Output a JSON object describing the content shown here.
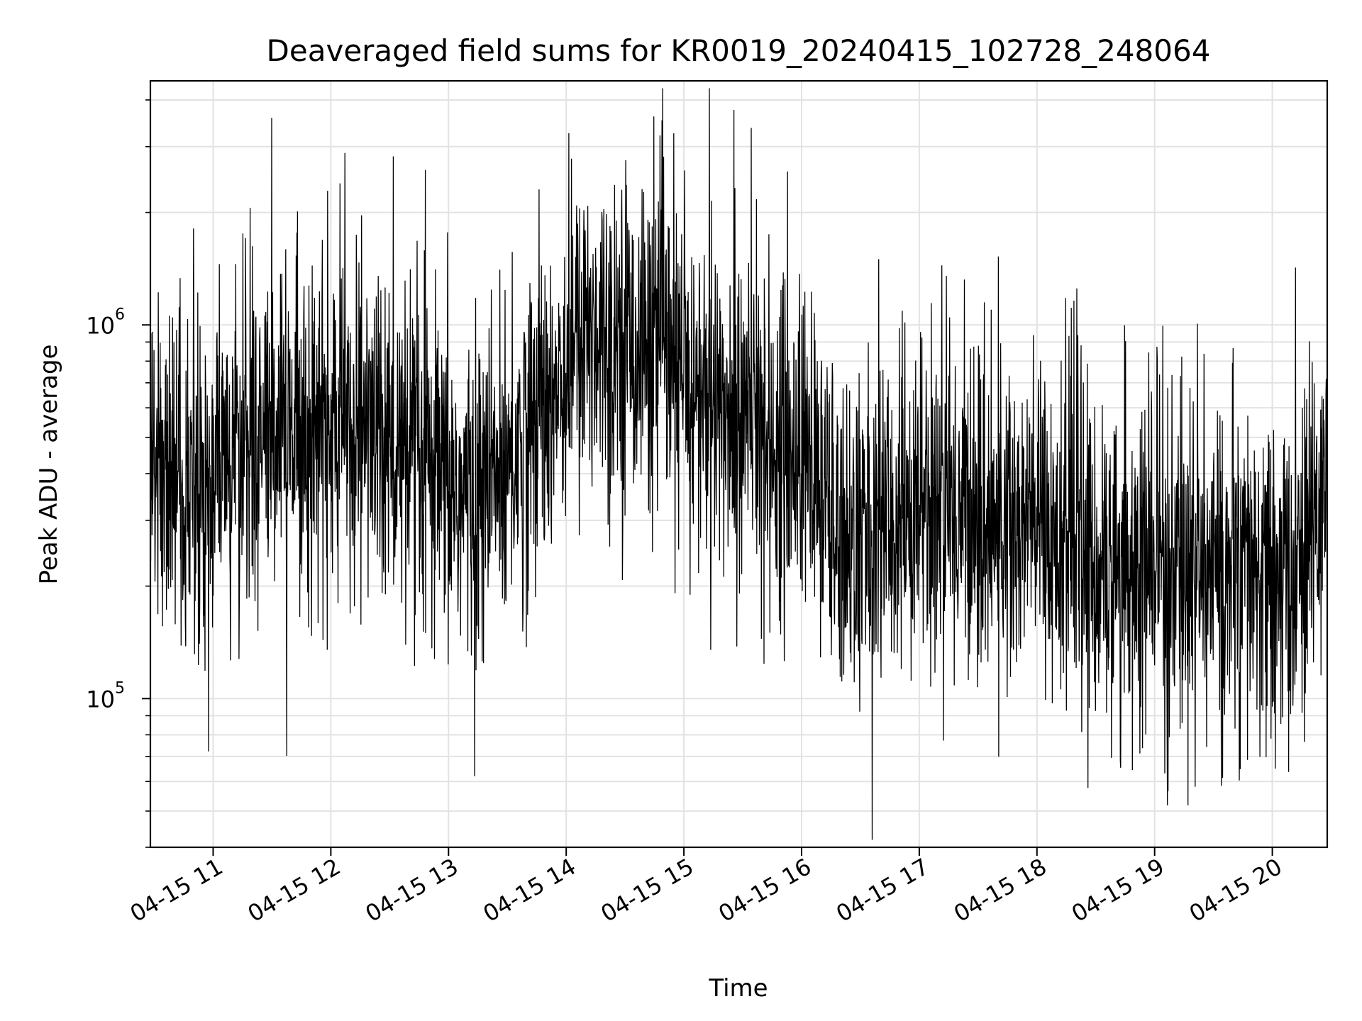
{
  "chart_data": {
    "type": "line",
    "title": "Deaveraged field sums for KR0019_20240415_102728_248064",
    "xlabel": "Time",
    "ylabel": "Peak ADU - average",
    "yscale": "log",
    "grid": true,
    "x_range": [
      "04-15 10:28",
      "04-15 20:28"
    ],
    "ylim": [
      40000,
      4500000
    ],
    "xtick_labels": [
      "04-15 11",
      "04-15 12",
      "04-15 13",
      "04-15 14",
      "04-15 15",
      "04-15 16",
      "04-15 17",
      "04-15 18",
      "04-15 19",
      "04-15 20"
    ],
    "ytick_labels": [
      {
        "base": "10",
        "exp": "5",
        "value": 100000
      },
      {
        "base": "10",
        "exp": "6",
        "value": 1000000
      }
    ],
    "series": [
      {
        "color": "#000000",
        "x": [
          "04-15 10:28",
          "04-15 10:45",
          "04-15 11:00",
          "04-15 11:15",
          "04-15 11:30",
          "04-15 11:45",
          "04-15 12:00",
          "04-15 12:15",
          "04-15 12:30",
          "04-15 12:45",
          "04-15 13:00",
          "04-15 13:15",
          "04-15 13:30",
          "04-15 13:45",
          "04-15 14:00",
          "04-15 14:15",
          "04-15 14:30",
          "04-15 14:45",
          "04-15 15:00",
          "04-15 15:15",
          "04-15 15:30",
          "04-15 15:45",
          "04-15 16:00",
          "04-15 16:15",
          "04-15 16:30",
          "04-15 16:45",
          "04-15 17:00",
          "04-15 17:15",
          "04-15 17:30",
          "04-15 17:45",
          "04-15 18:00",
          "04-15 18:15",
          "04-15 18:30",
          "04-15 18:45",
          "04-15 19:00",
          "04-15 19:15",
          "04-15 19:30",
          "04-15 19:45",
          "04-15 20:00",
          "04-15 20:15",
          "04-15 20:28"
        ],
        "values": [
          420000,
          350000,
          380000,
          500000,
          480000,
          550000,
          520000,
          560000,
          470000,
          390000,
          360000,
          330000,
          420000,
          550000,
          800000,
          1000000,
          950000,
          850000,
          700000,
          600000,
          560000,
          520000,
          450000,
          300000,
          250000,
          280000,
          320000,
          330000,
          300000,
          280000,
          300000,
          260000,
          230000,
          220000,
          210000,
          200000,
          210000,
          220000,
          190000,
          210000,
          420000
        ]
      }
    ]
  }
}
